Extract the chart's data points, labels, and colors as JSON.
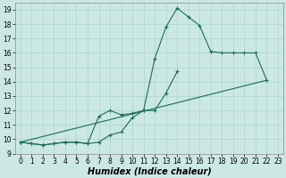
{
  "xlabel": "Humidex (Indice chaleur)",
  "bg_color": "#cce8e4",
  "line_color": "#1a6b5a",
  "grid_color": "#aad4cc",
  "ylim": [
    9,
    19.5
  ],
  "xlim": [
    -0.5,
    23.5
  ],
  "yticks": [
    9,
    10,
    11,
    12,
    13,
    14,
    15,
    16,
    17,
    18,
    19
  ],
  "xticks": [
    0,
    1,
    2,
    3,
    4,
    5,
    6,
    7,
    8,
    9,
    10,
    11,
    12,
    13,
    14,
    15,
    16,
    17,
    18,
    19,
    20,
    21,
    22,
    23
  ],
  "line1_x": [
    0,
    1,
    2,
    3,
    4,
    5,
    6,
    7,
    8,
    9,
    10,
    11,
    12,
    13,
    14,
    15,
    16,
    17,
    18,
    19,
    20,
    21,
    22
  ],
  "line1_y": [
    9.8,
    9.7,
    9.6,
    9.7,
    9.8,
    9.8,
    9.7,
    9.8,
    10.3,
    10.5,
    11.5,
    12.0,
    15.6,
    17.8,
    19.1,
    18.5,
    17.9,
    16.1,
    16.0,
    16.0,
    16.0,
    16.0,
    14.1
  ],
  "line2_x": [
    0,
    1,
    2,
    3,
    4,
    5,
    6,
    7,
    8,
    9,
    10,
    11,
    12,
    13,
    14
  ],
  "line2_y": [
    9.8,
    9.7,
    9.6,
    9.7,
    9.8,
    9.8,
    9.7,
    11.6,
    12.0,
    11.7,
    11.8,
    12.0,
    12.0,
    13.2,
    14.7
  ],
  "line3_x": [
    0,
    22
  ],
  "line3_y": [
    9.8,
    14.1
  ],
  "font_size_label": 7,
  "font_size_tick": 5.5,
  "marker_size": 3.5,
  "lw": 0.8
}
